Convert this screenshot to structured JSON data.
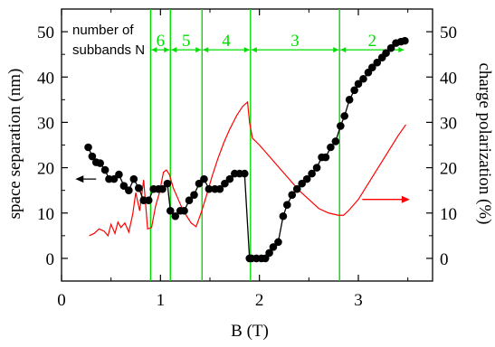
{
  "chart_data": {
    "type": "line",
    "xlabel": "B (T)",
    "ylabel": "space separation (nm)",
    "y2label": "charge polarization (%)",
    "xlim": [
      0,
      3.75
    ],
    "ylim": [
      -5,
      55
    ],
    "y2lim": [
      -5,
      55
    ],
    "x_ticks": [
      0,
      1,
      2,
      3
    ],
    "y_ticks": [
      0,
      10,
      20,
      30,
      40,
      50
    ],
    "y2_ticks": [
      0,
      10,
      20,
      30,
      40,
      50
    ],
    "grid": false,
    "series": [
      {
        "axis": "left",
        "color": "#000000",
        "marker": "circle",
        "x": [
          0.27,
          0.31,
          0.35,
          0.39,
          0.44,
          0.48,
          0.53,
          0.58,
          0.63,
          0.68,
          0.73,
          0.78,
          0.83,
          0.88,
          0.93,
          0.98,
          1.02,
          1.07,
          1.1,
          1.15,
          1.2,
          1.24,
          1.29,
          1.34,
          1.39,
          1.44,
          1.49,
          1.55,
          1.6,
          1.65,
          1.7,
          1.75,
          1.8,
          1.85,
          1.9,
          1.92,
          1.97,
          2.02,
          2.06,
          2.1,
          2.14,
          2.19,
          2.24,
          2.28,
          2.33,
          2.38,
          2.43,
          2.48,
          2.53,
          2.58,
          2.63,
          2.67,
          2.72,
          2.77,
          2.82,
          2.86,
          2.91,
          2.96,
          3.0,
          3.05,
          3.1,
          3.14,
          3.19,
          3.24,
          3.28,
          3.33,
          3.38,
          3.43,
          3.47
        ],
        "values": [
          24.5,
          22.5,
          21.2,
          21.0,
          19.5,
          17.5,
          17.5,
          18.5,
          16.0,
          15.0,
          17.5,
          15.5,
          12.8,
          12.8,
          15.3,
          15.3,
          15.3,
          16.5,
          10.5,
          9.3,
          10.5,
          10.5,
          12.8,
          14.0,
          16.5,
          17.5,
          15.3,
          15.3,
          15.3,
          16.5,
          17.5,
          18.7,
          18.7,
          18.7,
          0.0,
          0.0,
          0.0,
          0.0,
          0.0,
          1.2,
          2.5,
          3.6,
          9.3,
          11.8,
          14.0,
          15.3,
          16.5,
          17.5,
          18.7,
          20.0,
          22.3,
          22.3,
          24.5,
          25.8,
          29.2,
          31.4,
          35.0,
          37.1,
          38.5,
          39.6,
          41.0,
          42.1,
          43.2,
          44.3,
          45.3,
          46.4,
          47.5,
          47.8,
          48.0
        ]
      },
      {
        "axis": "right",
        "color": "#ff0000",
        "marker": "none",
        "x": [
          0.28,
          0.33,
          0.38,
          0.43,
          0.47,
          0.5,
          0.54,
          0.57,
          0.6,
          0.64,
          0.68,
          0.72,
          0.75,
          0.79,
          0.83,
          0.87,
          0.91,
          0.95,
          0.99,
          1.03,
          1.06,
          1.09,
          1.13,
          1.17,
          1.21,
          1.26,
          1.31,
          1.36,
          1.41,
          1.46,
          1.52,
          1.58,
          1.64,
          1.7,
          1.77,
          1.83,
          1.88,
          1.9,
          1.93,
          2.0,
          2.1,
          2.2,
          2.3,
          2.4,
          2.5,
          2.6,
          2.7,
          2.8,
          2.85,
          2.9,
          3.0,
          3.1,
          3.2,
          3.3,
          3.4,
          3.48
        ],
        "values": [
          5.0,
          5.5,
          6.5,
          6.0,
          5.0,
          7.5,
          5.5,
          8.0,
          6.8,
          7.8,
          5.8,
          9.8,
          14.5,
          10.5,
          17.3,
          6.5,
          6.8,
          11.5,
          14.5,
          19.0,
          19.5,
          18.5,
          15.5,
          13.5,
          11.5,
          9.5,
          7.8,
          7.0,
          10.0,
          13.5,
          18.0,
          22.0,
          25.5,
          28.5,
          31.5,
          33.5,
          34.5,
          30.0,
          26.5,
          25.0,
          22.5,
          20.0,
          17.5,
          15.0,
          13.0,
          11.0,
          10.0,
          9.5,
          9.5,
          10.5,
          13.0,
          16.5,
          20.0,
          23.5,
          27.0,
          29.5
        ]
      }
    ],
    "band_boundaries": [
      0.9,
      1.1,
      1.42,
      1.91,
      2.81
    ],
    "bands": [
      {
        "label": "6",
        "from": 0.9,
        "to": 1.1
      },
      {
        "label": "5",
        "from": 1.1,
        "to": 1.42
      },
      {
        "label": "4",
        "from": 1.42,
        "to": 1.91
      },
      {
        "label": "3",
        "from": 1.91,
        "to": 2.81
      },
      {
        "label": "2",
        "from": 2.81,
        "to": 3.47
      }
    ],
    "band_arrow_y": 46,
    "annotation": {
      "line1": "number of",
      "line2": "subbands N"
    }
  }
}
